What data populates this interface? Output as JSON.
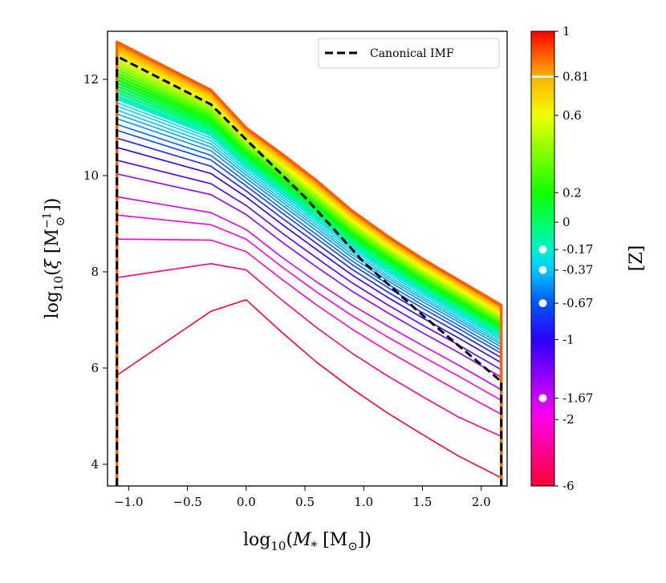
{
  "chart_data": {
    "type": "line",
    "title": "",
    "xlabel_parts": {
      "prefix": "log",
      "sub": "10",
      "open": "(",
      "var": "M",
      "varsub": "*",
      "unit": " [M",
      "unitsub": "⊙",
      "close": "])"
    },
    "ylabel_parts": {
      "prefix": "log",
      "sub": "10",
      "open": "(",
      "var": "ξ",
      "unit": " [M",
      "unitsup": "−1",
      "unitsub": "⊙",
      "close": "])"
    },
    "xlim": [
      -1.18,
      2.22
    ],
    "ylim": [
      3.55,
      13.0
    ],
    "x_ticks": [
      {
        "value": -1.0,
        "label": "−1.0"
      },
      {
        "value": -0.5,
        "label": "−0.5"
      },
      {
        "value": 0.0,
        "label": "0.0"
      },
      {
        "value": 0.5,
        "label": "0.5"
      },
      {
        "value": 1.0,
        "label": "1.0"
      },
      {
        "value": 1.5,
        "label": "1.5"
      },
      {
        "value": 2.0,
        "label": "2.0"
      }
    ],
    "y_ticks": [
      {
        "value": 4,
        "label": "4"
      },
      {
        "value": 6,
        "label": "6"
      },
      {
        "value": 8,
        "label": "8"
      },
      {
        "value": 10,
        "label": "10"
      },
      {
        "value": 12,
        "label": "12"
      }
    ],
    "x_grid": [
      -1.1,
      -0.3,
      0.0,
      0.3,
      0.6,
      0.9,
      1.2,
      1.5,
      1.8,
      2.17
    ],
    "mass_range": [
      -1.1,
      2.17
    ],
    "series": [
      {
        "metallicity": -6,
        "values": [
          5.85,
          7.18,
          7.42,
          6.75,
          6.12,
          5.57,
          5.07,
          4.62,
          4.18,
          3.72
        ]
      },
      {
        "metallicity": -4,
        "values": [
          7.88,
          8.17,
          8.04,
          7.42,
          6.84,
          6.31,
          5.84,
          5.41,
          4.99,
          4.58
        ]
      },
      {
        "metallicity": -2.5,
        "values": [
          8.68,
          8.66,
          8.42,
          7.85,
          7.31,
          6.81,
          6.36,
          5.94,
          5.53,
          5.04
        ]
      },
      {
        "metallicity": -2,
        "values": [
          9.18,
          8.98,
          8.68,
          8.11,
          7.58,
          7.09,
          6.65,
          6.24,
          5.84,
          5.33
        ]
      },
      {
        "metallicity": -1.67,
        "values": [
          9.56,
          9.23,
          8.88,
          8.31,
          7.79,
          7.31,
          6.88,
          6.47,
          6.07,
          5.55
        ]
      }
    ],
    "metallicity_samples": [
      -6,
      -4,
      -2.5,
      -2,
      -1.67,
      -1.4,
      -1.2,
      -1.0,
      -0.85,
      -0.72,
      -0.62,
      -0.52,
      -0.44,
      -0.37,
      -0.3,
      -0.24,
      -0.17,
      -0.12,
      -0.06,
      0.0,
      0.06,
      0.12,
      0.18,
      0.24,
      0.3,
      0.36,
      0.42,
      0.48,
      0.54,
      0.6,
      0.65,
      0.7,
      0.75,
      0.78,
      0.81,
      0.84,
      0.87,
      0.9
    ],
    "canonical_imf": {
      "label": "Canonical IMF",
      "x": [
        -1.1,
        -1.1,
        -0.3,
        0.0,
        0.5,
        1.0,
        1.5,
        2.17,
        2.17
      ],
      "y": [
        3.55,
        12.48,
        11.48,
        10.75,
        9.55,
        8.2,
        7.1,
        5.72,
        3.55
      ]
    },
    "colorbar": {
      "label": "[Z]",
      "ticks": [
        {
          "value": 1,
          "label": "1"
        },
        {
          "value": 0.81,
          "label": "0.81"
        },
        {
          "value": 0.6,
          "label": "0.6"
        },
        {
          "value": 0.2,
          "label": "0.2"
        },
        {
          "value": 0,
          "label": "0"
        },
        {
          "value": -0.17,
          "label": "-0.17"
        },
        {
          "value": -0.37,
          "label": "-0.37"
        },
        {
          "value": -0.67,
          "label": "-0.67"
        },
        {
          "value": -1,
          "label": "-1"
        },
        {
          "value": -1.67,
          "label": "-1.67"
        },
        {
          "value": -2,
          "label": "-2"
        },
        {
          "value": -6,
          "label": "-6"
        }
      ],
      "markers": [
        {
          "value": 0.81,
          "shape": "line"
        },
        {
          "value": -0.17,
          "shape": "dot"
        },
        {
          "value": -0.37,
          "shape": "dot"
        },
        {
          "value": -0.67,
          "shape": "dot"
        },
        {
          "value": -1.67,
          "shape": "dot"
        }
      ],
      "color_stops": [
        {
          "value": -6,
          "color": "#ff0033"
        },
        {
          "value": -2,
          "color": "#ff00e6"
        },
        {
          "value": -1.67,
          "color": "#d000ff"
        },
        {
          "value": -1,
          "color": "#2a00ff"
        },
        {
          "value": -0.67,
          "color": "#0055ff"
        },
        {
          "value": -0.37,
          "color": "#00c8ff"
        },
        {
          "value": -0.17,
          "color": "#00f0d0"
        },
        {
          "value": 0,
          "color": "#00ff66"
        },
        {
          "value": 0.2,
          "color": "#10ff00"
        },
        {
          "value": 0.6,
          "color": "#f0ff00"
        },
        {
          "value": 0.81,
          "color": "#ffb000"
        },
        {
          "value": 1,
          "color": "#ff0000"
        }
      ]
    },
    "legend": {
      "location": "upper right",
      "entries": [
        {
          "label": "Canonical IMF",
          "style": "dashed",
          "color": "#000000"
        }
      ]
    }
  }
}
